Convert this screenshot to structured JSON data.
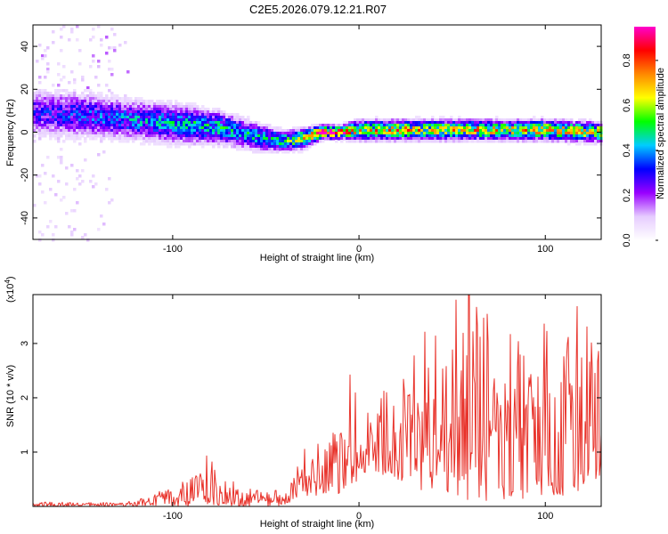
{
  "title": "C2E5.2026.079.12.21.R07",
  "chart_data": [
    {
      "type": "heatmap",
      "name": "spectrogram",
      "xlabel": "Height of straight line (km)",
      "ylabel": "Frequency (Hz)",
      "xlim": [
        -175,
        130
      ],
      "ylim": [
        -50,
        50
      ],
      "xticks": [
        -100,
        0,
        100
      ],
      "xtick_labels": [
        "-100",
        "0",
        "100"
      ],
      "yticks": [
        -40,
        -20,
        0,
        20,
        40
      ],
      "ytick_labels": [
        "-40",
        "-20",
        "0",
        "20",
        "40"
      ],
      "colorbar": {
        "label": "Normalized spectral amplitude",
        "range": [
          0,
          0.95
        ],
        "ticks": [
          0.0,
          0.2,
          0.4,
          0.6,
          0.8
        ],
        "tick_labels": [
          "0.0",
          "0.2",
          "0.4",
          "0.6",
          "0.8"
        ],
        "colors": [
          "#ffffff",
          "#e6ccff",
          "#9900ff",
          "#0000ff",
          "#00ccff",
          "#00ff00",
          "#ffff00",
          "#ff8800",
          "#ff0000",
          "#ff00cc"
        ]
      },
      "ridge": {
        "x": [
          -175,
          -150,
          -125,
          -100,
          -75,
          -50,
          -40,
          -30,
          -20,
          -10,
          0,
          20,
          40,
          60,
          80,
          100,
          130
        ],
        "center_hz": [
          9,
          8,
          6,
          4,
          2,
          -3,
          -4,
          -3,
          0,
          0,
          1,
          1,
          1,
          1,
          1,
          1,
          0
        ],
        "half_width_hz": [
          7,
          7,
          6,
          6,
          5,
          4,
          3,
          3,
          2,
          2,
          3,
          3,
          3,
          3,
          3,
          3,
          3
        ],
        "amplitude": [
          0.3,
          0.35,
          0.4,
          0.45,
          0.5,
          0.45,
          0.55,
          0.7,
          0.95,
          0.9,
          0.7,
          0.75,
          0.7,
          0.75,
          0.7,
          0.75,
          0.7
        ]
      }
    },
    {
      "type": "line",
      "name": "snr",
      "xlabel": "Height of straight line (km)",
      "ylabel": "SNR (10 * v/v)",
      "yscale_label": "(x10",
      "yscale_exponent": "4",
      "yscale_close": ")",
      "xlim": [
        -175,
        130
      ],
      "ylim": [
        0,
        3.9
      ],
      "xticks": [
        -100,
        0,
        100
      ],
      "xtick_labels": [
        "-100",
        "0",
        "100"
      ],
      "yticks": [
        1,
        2,
        3
      ],
      "ytick_labels": [
        "1",
        "2",
        "3"
      ],
      "color": "#e8322a",
      "envelope": {
        "x": [
          -175,
          -130,
          -120,
          -110,
          -100,
          -90,
          -80,
          -70,
          -60,
          -50,
          -40,
          -35,
          -30,
          -25,
          -20,
          -15,
          -10,
          -5,
          -2,
          0,
          2,
          5,
          10,
          20,
          30,
          40,
          50,
          60,
          70,
          80,
          90,
          100,
          110,
          120,
          130
        ],
        "min": [
          0,
          0,
          0,
          0,
          0,
          0,
          0.02,
          0.02,
          0.0,
          0.0,
          0.02,
          0.1,
          0.2,
          0.2,
          0.2,
          0.3,
          0.2,
          0.2,
          0.6,
          0.0,
          0.3,
          0.7,
          0.6,
          0.5,
          0.3,
          0.2,
          0.1,
          0.1,
          0.1,
          0.1,
          0.1,
          0.2,
          0.2,
          0.3,
          0.5
        ],
        "max": [
          0.08,
          0.08,
          0.1,
          0.25,
          0.4,
          0.55,
          0.9,
          0.55,
          0.35,
          0.3,
          0.3,
          0.9,
          1.05,
          1.1,
          1.2,
          1.5,
          1.5,
          1.2,
          2.4,
          1.1,
          1.3,
          2.0,
          2.1,
          2.3,
          3.2,
          3.3,
          3.4,
          3.9,
          3.5,
          3.6,
          3.3,
          3.6,
          3.6,
          3.4,
          3.2
        ]
      },
      "peaks": [
        {
          "x": -82,
          "y": 0.93
        },
        {
          "x": -5,
          "y": 2.42
        },
        {
          "x": 59,
          "y": 3.9
        },
        {
          "x": 52,
          "y": 3.8
        },
        {
          "x": 117,
          "y": 3.68
        }
      ]
    }
  ]
}
